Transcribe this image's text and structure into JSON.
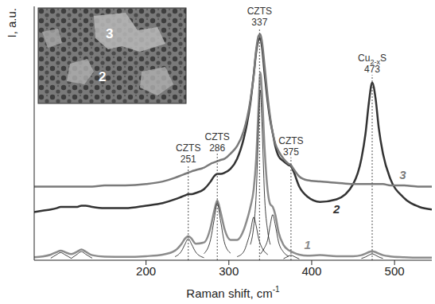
{
  "chart_data": {
    "type": "line",
    "x_label": "Raman shift,  cm-1",
    "y_label": "I, a.u.",
    "xlim": [
      65,
      545
    ],
    "xticks": [
      200,
      300,
      400,
      500
    ],
    "ylim": [
      0,
      100
    ],
    "yticks": [],
    "tick_labels": "x",
    "grid": false,
    "x": [
      65,
      75,
      85,
      92,
      97,
      102,
      110,
      117,
      122,
      127,
      135,
      150,
      175,
      200,
      220,
      235,
      243,
      247,
      251,
      255,
      260,
      270,
      278,
      282,
      286,
      290,
      295,
      302,
      310,
      318,
      322,
      326,
      330,
      333,
      336,
      338,
      340,
      343,
      347,
      350,
      353,
      356,
      360,
      366,
      372,
      375,
      378,
      385,
      395,
      410,
      430,
      450,
      460,
      465,
      469,
      473,
      477,
      481,
      486,
      495,
      510,
      530,
      545
    ],
    "series": [
      {
        "name": "1",
        "color": "#8c8c8c",
        "values": [
          1.2,
          1.5,
          2.2,
          3.2,
          3.8,
          3.2,
          2.4,
          3.4,
          4.2,
          3.4,
          2.0,
          1.4,
          1.3,
          1.6,
          2.2,
          3.8,
          6.5,
          8.5,
          9.5,
          8.5,
          6.5,
          7,
          13,
          19,
          23.5,
          19,
          12,
          8,
          8,
          12,
          16,
          21,
          28,
          40,
          62,
          74,
          66,
          45,
          27,
          22,
          21,
          18,
          11,
          6,
          4,
          3.5,
          3,
          2.2,
          1.8,
          2,
          1.6,
          1.6,
          2,
          2.6,
          3.2,
          3.5,
          3.2,
          2.6,
          2,
          1.5,
          1.2,
          1,
          1
        ]
      },
      {
        "name": "2",
        "color": "#333333",
        "values": [
          19,
          19.5,
          20,
          20.5,
          21,
          21,
          21,
          21,
          21.5,
          21.5,
          21,
          20.5,
          20.5,
          21.5,
          22.5,
          24,
          25,
          25.5,
          26,
          26,
          26.5,
          28,
          31,
          33,
          34,
          34,
          34.5,
          36,
          40,
          48,
          54,
          62,
          73,
          82,
          87,
          87.5,
          84,
          74,
          62,
          55,
          50,
          45,
          41,
          39,
          37.5,
          37,
          35,
          29,
          25,
          23,
          24,
          30,
          40,
          50,
          62,
          70,
          64,
          52,
          42,
          32,
          25,
          21,
          20
        ]
      },
      {
        "name": "3",
        "color": "#7a7a7a",
        "values": [
          29,
          29,
          29,
          29,
          29,
          29,
          29,
          29,
          29,
          29,
          29,
          29.5,
          29.5,
          30,
          31,
          32.5,
          33.5,
          34,
          34.5,
          35,
          35.5,
          36.5,
          38,
          38.5,
          39,
          39.5,
          40,
          42,
          45,
          51,
          56,
          63,
          73,
          83,
          88.5,
          89,
          86,
          77,
          64,
          56,
          50,
          46,
          43,
          40,
          38,
          37.5,
          36,
          33,
          31.5,
          31,
          30.5,
          30,
          30,
          30,
          30,
          30,
          30,
          30,
          30,
          29.5,
          29.5,
          29,
          29
        ]
      },
      {
        "color": "#111111",
        "x": [
          85,
          92,
          97,
          102,
          110
        ],
        "values": [
          0.8,
          2.2,
          3,
          2.2,
          0.7
        ]
      },
      {
        "color": "#111111",
        "x": [
          110,
          117,
          122,
          127,
          135
        ],
        "values": [
          0.8,
          2.4,
          3.4,
          2.4,
          0.8
        ]
      },
      {
        "color": "#111111",
        "x": [
          235,
          243,
          247,
          251,
          255,
          260,
          270
        ],
        "values": [
          1.4,
          3.7,
          6.3,
          8.5,
          6.3,
          3.2,
          1
        ]
      },
      {
        "color": "#111111",
        "x": [
          270,
          278,
          282,
          286,
          290,
          295,
          302
        ],
        "values": [
          2.6,
          8.3,
          15.5,
          22.5,
          15.5,
          6.6,
          2.8
        ]
      },
      {
        "color": "#111111",
        "x": [
          310,
          318,
          322,
          326,
          330,
          333,
          336,
          338,
          340,
          343,
          347
        ],
        "values": [
          1.4,
          3.4,
          6.8,
          11.3,
          17,
          13.5,
          8.5,
          6.4,
          4.9,
          3.4,
          2.2
        ]
      },
      {
        "color": "#111111",
        "x": [
          326,
          330,
          333,
          336,
          338,
          340,
          343,
          347,
          350
        ],
        "values": [
          6.2,
          13.4,
          26,
          53.6,
          67,
          53.6,
          26,
          11.2,
          6.2
        ]
      },
      {
        "color": "#111111",
        "x": [
          338,
          340,
          343,
          347,
          350,
          353,
          356,
          360,
          366,
          372
        ],
        "values": [
          2.4,
          3.3,
          4.9,
          8.3,
          14,
          18,
          14,
          7.2,
          3.2,
          1.6
        ]
      },
      {
        "color": "#111111",
        "x": [
          366,
          372,
          375,
          378,
          385
        ],
        "values": [
          0.6,
          1.6,
          2,
          1.6,
          0.5
        ]
      },
      {
        "color": "#111111",
        "x": [
          460,
          465,
          469,
          473,
          477,
          481,
          486
        ],
        "values": [
          0.7,
          1.3,
          2,
          2.5,
          2,
          1.3,
          0.7
        ]
      }
    ],
    "annotations": [
      {
        "label": "CZTS",
        "x": 251
      },
      {
        "label": "CZTS",
        "x": 286
      },
      {
        "label": "CZTS",
        "x": 337
      },
      {
        "label": "CZTS",
        "x": 375
      },
      {
        "label": "Cu2-xS",
        "x": 473
      }
    ],
    "inset": {
      "labels": [
        "3",
        "2"
      ]
    }
  }
}
